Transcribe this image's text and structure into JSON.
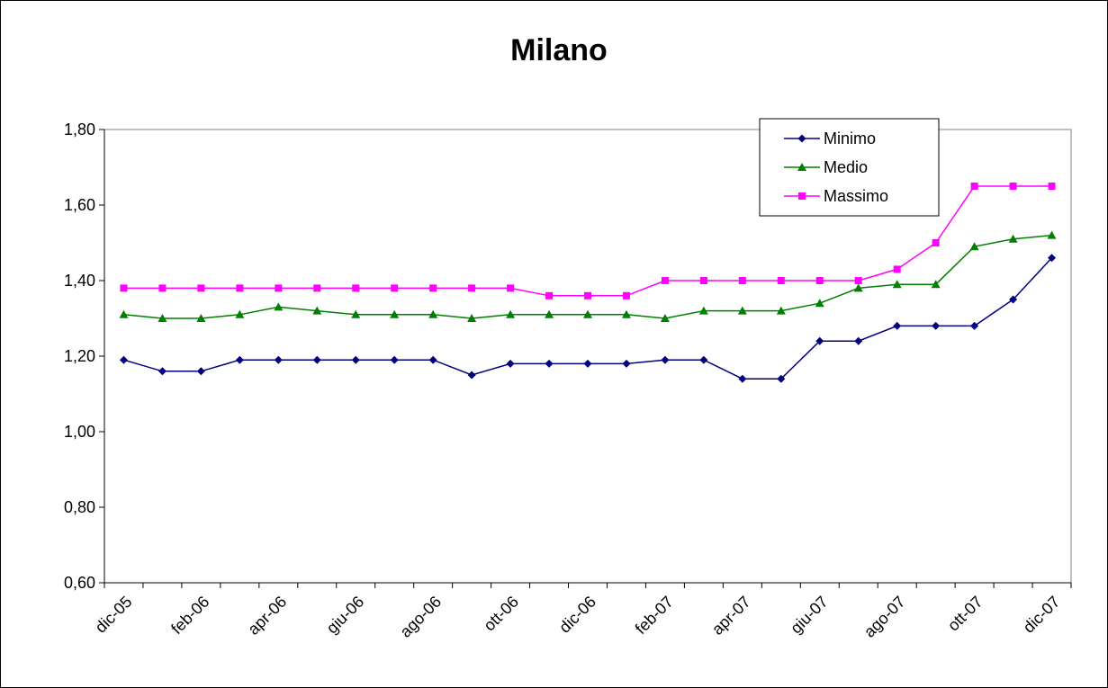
{
  "chart_data": {
    "type": "line",
    "title": "Milano",
    "xlabel": "",
    "ylabel": "",
    "ylim": [
      0.6,
      1.8
    ],
    "yticks": [
      0.6,
      0.8,
      1.0,
      1.2,
      1.4,
      1.6,
      1.8
    ],
    "ytick_labels": [
      "0,60",
      "0,80",
      "1,00",
      "1,20",
      "1,40",
      "1,60",
      "1,80"
    ],
    "x_tick_labels": [
      "dic-05",
      "feb-06",
      "apr-06",
      "giu-06",
      "ago-06",
      "ott-06",
      "dic-06",
      "feb-07",
      "apr-07",
      "giu-07",
      "ago-07",
      "ott-07",
      "dic-07"
    ],
    "grid": false,
    "legend_position": "top-right",
    "series": [
      {
        "name": "Minimo",
        "color": "#000080",
        "marker": "diamond",
        "values": [
          1.19,
          1.16,
          1.16,
          1.19,
          1.19,
          1.19,
          1.19,
          1.19,
          1.19,
          1.15,
          1.18,
          1.18,
          1.18,
          1.18,
          1.19,
          1.19,
          1.14,
          1.14,
          1.24,
          1.24,
          1.28,
          1.28,
          1.28,
          1.35,
          1.46
        ]
      },
      {
        "name": "Medio",
        "color": "#008000",
        "marker": "triangle",
        "values": [
          1.31,
          1.3,
          1.3,
          1.31,
          1.33,
          1.32,
          1.31,
          1.31,
          1.31,
          1.3,
          1.31,
          1.31,
          1.31,
          1.31,
          1.3,
          1.32,
          1.32,
          1.32,
          1.34,
          1.38,
          1.39,
          1.39,
          1.49,
          1.51,
          1.52
        ]
      },
      {
        "name": "Massimo",
        "color": "#FF00FF",
        "marker": "square",
        "values": [
          1.38,
          1.38,
          1.38,
          1.38,
          1.38,
          1.38,
          1.38,
          1.38,
          1.38,
          1.38,
          1.38,
          1.36,
          1.36,
          1.36,
          1.4,
          1.4,
          1.4,
          1.4,
          1.4,
          1.4,
          1.43,
          1.5,
          1.65,
          1.65,
          1.65
        ]
      }
    ]
  }
}
